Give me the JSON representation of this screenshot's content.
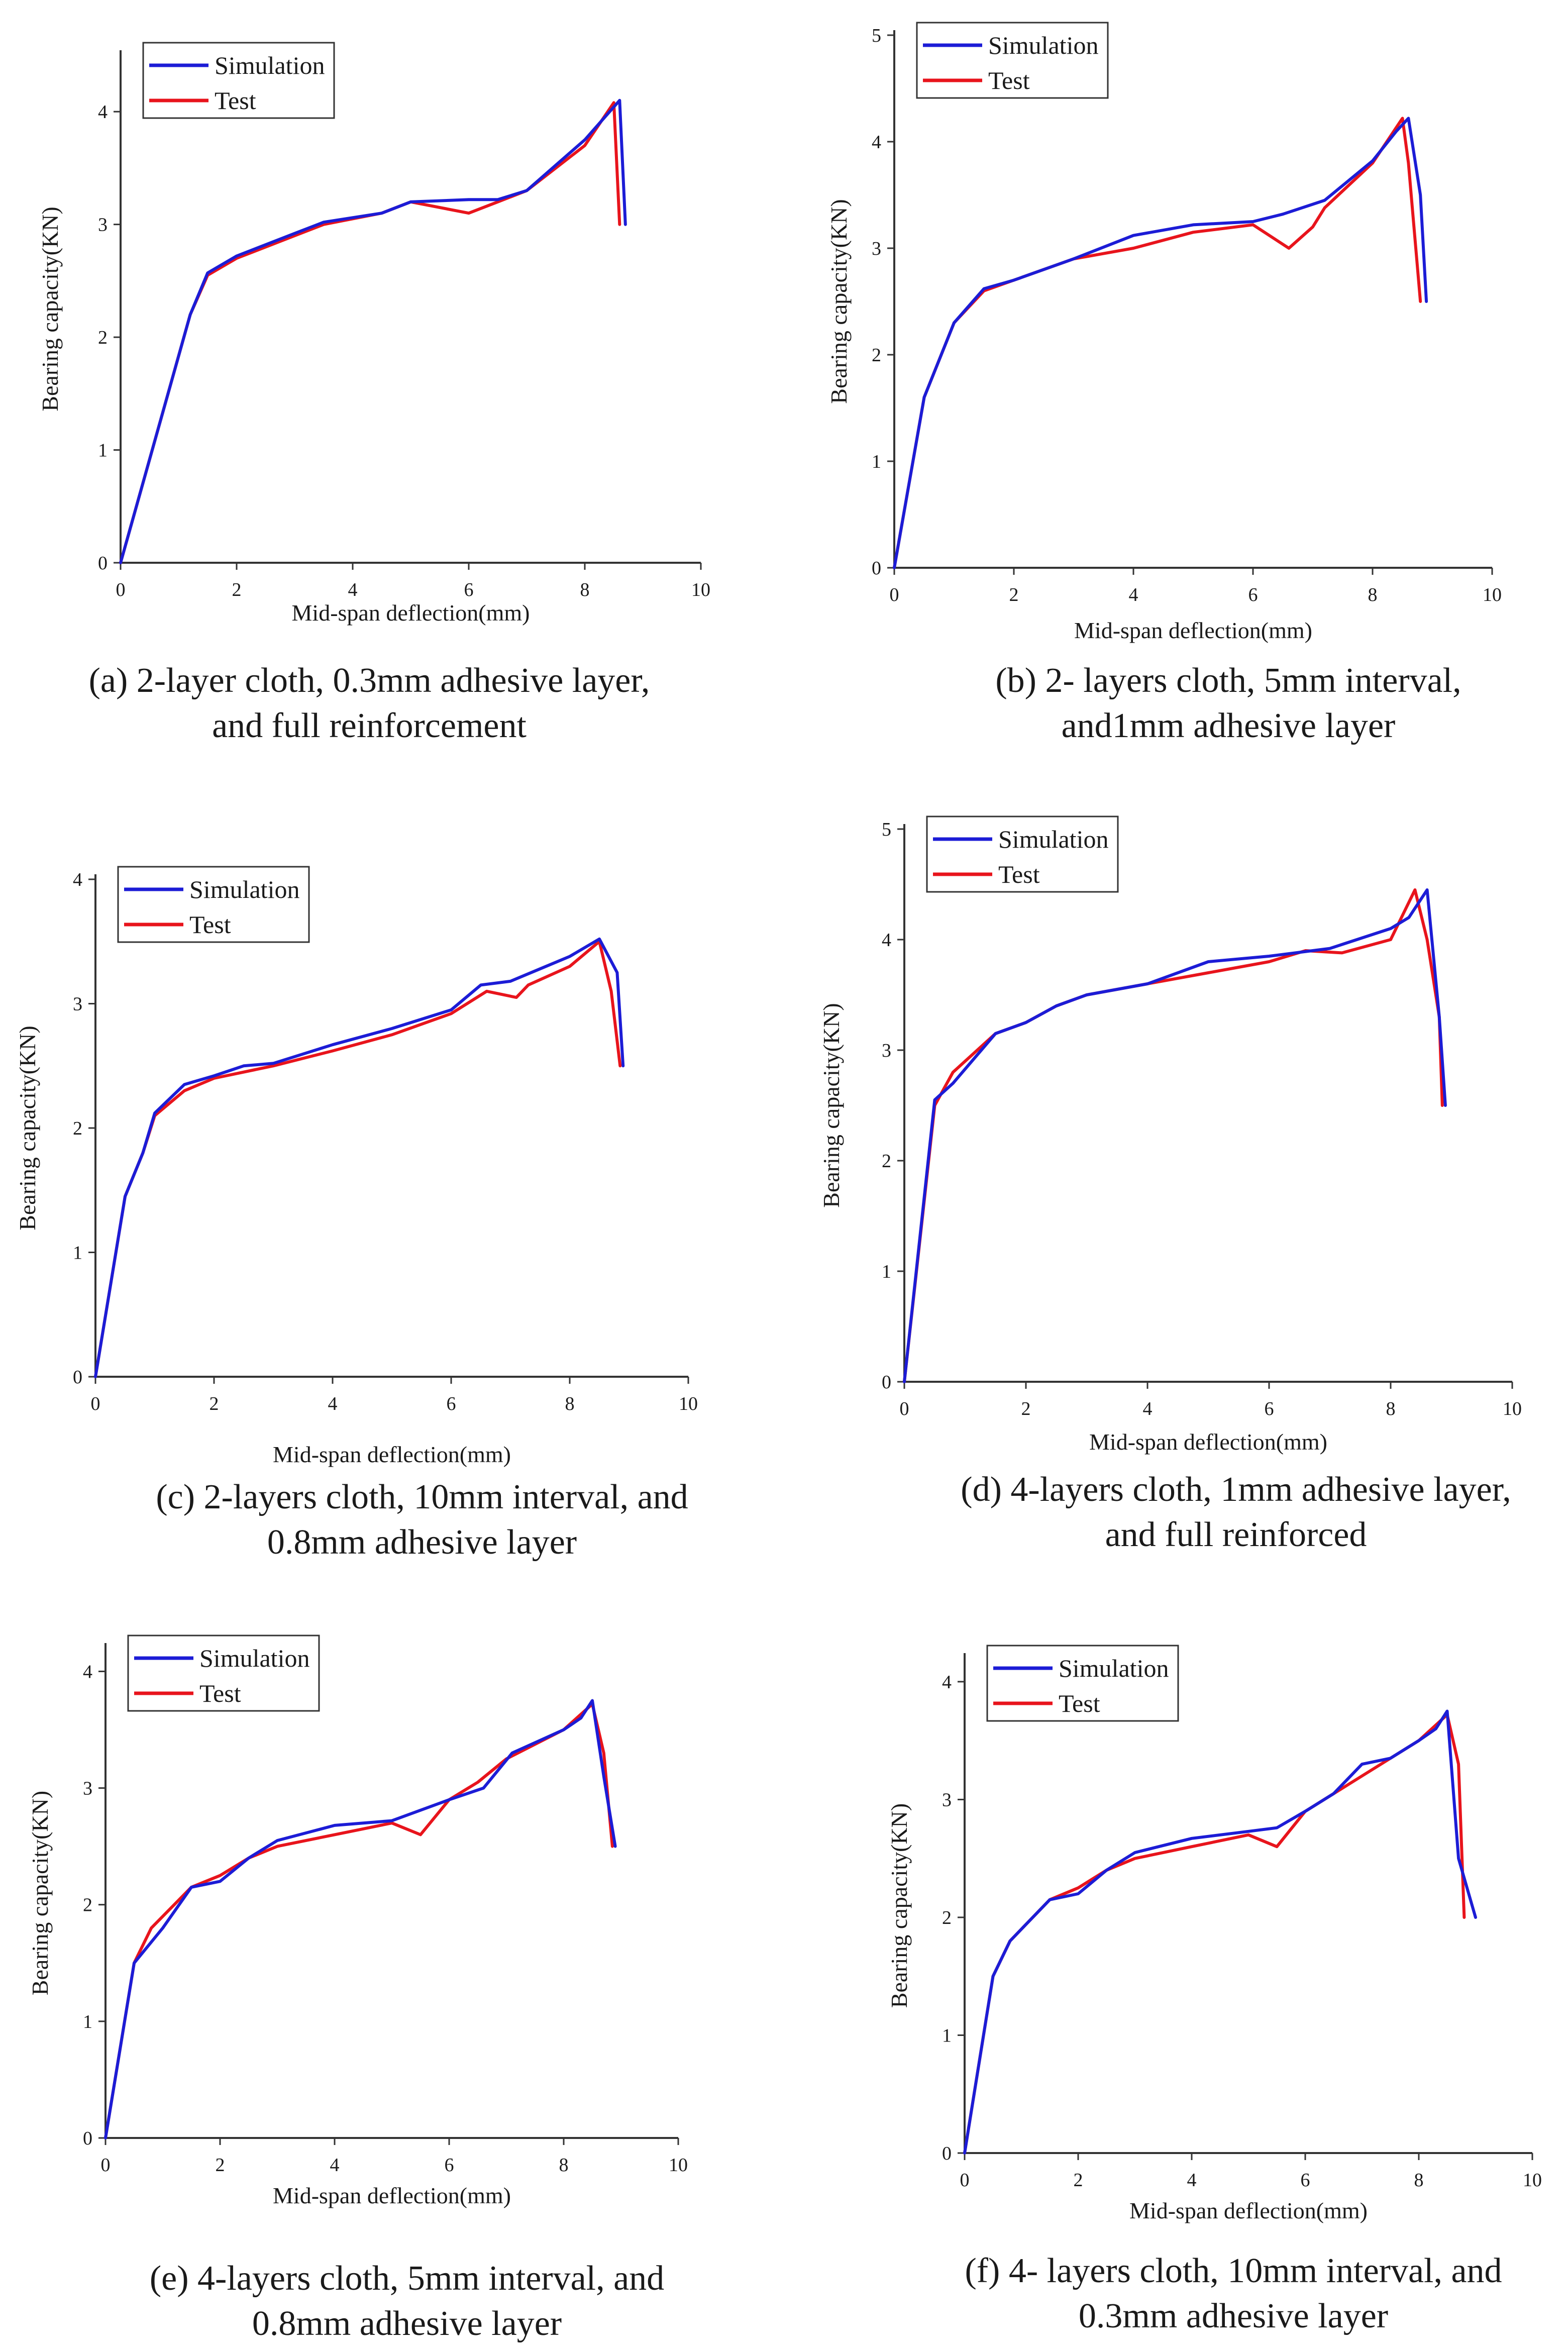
{
  "legend": {
    "simulation": "Simulation",
    "test": "Test"
  },
  "colors": {
    "simulation": "#1c1cd6",
    "test": "#e8141c",
    "axis": "#333333",
    "text": "#1a1a1a"
  },
  "chart_data": [
    {
      "type": "line",
      "panel": "a",
      "caption": [
        "(a) 2-layer cloth, 0.3mm adhesive layer,",
        "and full reinforcement"
      ],
      "xlabel": "Mid-span deflection(mm)",
      "ylabel": "Bearing capacity(KN)",
      "xlim": [
        0,
        10
      ],
      "ylim": [
        0,
        4.5
      ],
      "xticks": [
        0,
        2,
        4,
        6,
        8,
        10
      ],
      "yticks": [
        0,
        1,
        2,
        3,
        4
      ],
      "legend_position": "top-left",
      "series": [
        {
          "name": "Simulation",
          "x": [
            0,
            0.6,
            1.2,
            1.5,
            2,
            3,
            3.5,
            4.5,
            5,
            6,
            6.5,
            7,
            8,
            8.6,
            8.7
          ],
          "y": [
            0,
            1.1,
            2.2,
            2.57,
            2.72,
            2.92,
            3.02,
            3.1,
            3.2,
            3.22,
            3.22,
            3.3,
            3.75,
            4.1,
            3.0
          ]
        },
        {
          "name": "Test",
          "x": [
            0,
            0.6,
            1.2,
            1.5,
            2,
            3,
            3.5,
            4.5,
            5,
            6,
            6.5,
            7,
            8,
            8.5,
            8.6
          ],
          "y": [
            0,
            1.1,
            2.2,
            2.55,
            2.7,
            2.9,
            3.0,
            3.1,
            3.2,
            3.1,
            3.2,
            3.3,
            3.7,
            4.08,
            3.0
          ]
        }
      ]
    },
    {
      "type": "line",
      "panel": "b",
      "caption": [
        "(b) 2- layers cloth, 5mm interval,",
        "and1mm adhesive layer"
      ],
      "xlabel": "Mid-span deflection(mm)",
      "ylabel": "Bearing capacity(KN)",
      "xlim": [
        0,
        10
      ],
      "ylim": [
        0,
        5
      ],
      "xticks": [
        0,
        2,
        4,
        6,
        8,
        10
      ],
      "yticks": [
        0,
        1,
        2,
        3,
        4,
        5
      ],
      "legend_position": "top-left",
      "series": [
        {
          "name": "Simulation",
          "x": [
            0,
            0.5,
            1,
            1.5,
            2,
            3,
            4,
            5,
            6,
            6.5,
            7.2,
            8,
            8.4,
            8.6,
            8.8,
            8.9
          ],
          "y": [
            0,
            1.6,
            2.3,
            2.62,
            2.7,
            2.9,
            3.12,
            3.22,
            3.25,
            3.32,
            3.45,
            3.82,
            4.1,
            4.22,
            3.5,
            2.5
          ]
        },
        {
          "name": "Test",
          "x": [
            0,
            0.5,
            1,
            1.5,
            2,
            3,
            4,
            5,
            6,
            6.6,
            7,
            7.2,
            8,
            8.5,
            8.6,
            8.8
          ],
          "y": [
            0,
            1.6,
            2.3,
            2.6,
            2.7,
            2.9,
            3.0,
            3.15,
            3.22,
            3.0,
            3.2,
            3.38,
            3.8,
            4.22,
            3.8,
            2.5
          ]
        }
      ]
    },
    {
      "type": "line",
      "panel": "c",
      "caption": [
        "(c) 2-layers cloth, 10mm interval, and",
        "0.8mm adhesive layer"
      ],
      "xlabel": "Mid-span deflection(mm)",
      "ylabel": "Bearing capacity(KN)",
      "xlim": [
        0,
        10
      ],
      "ylim": [
        0,
        4
      ],
      "xticks": [
        0,
        2,
        4,
        6,
        8,
        10
      ],
      "yticks": [
        0,
        1,
        2,
        3,
        4
      ],
      "legend_position": "top-left",
      "series": [
        {
          "name": "Simulation",
          "x": [
            0,
            0.5,
            0.8,
            1,
            1.5,
            2,
            2.5,
            3,
            4,
            5,
            6,
            6.5,
            7,
            7.5,
            8,
            8.5,
            8.8,
            8.9
          ],
          "y": [
            0,
            1.45,
            1.8,
            2.12,
            2.35,
            2.42,
            2.5,
            2.52,
            2.67,
            2.8,
            2.95,
            3.15,
            3.18,
            3.28,
            3.38,
            3.52,
            3.25,
            2.5
          ]
        },
        {
          "name": "Test",
          "x": [
            0,
            0.5,
            0.8,
            1,
            1.5,
            2,
            3,
            4,
            5,
            6,
            6.6,
            7.1,
            7.3,
            8,
            8.5,
            8.7,
            8.85
          ],
          "y": [
            0,
            1.45,
            1.8,
            2.1,
            2.3,
            2.4,
            2.5,
            2.62,
            2.75,
            2.92,
            3.1,
            3.05,
            3.15,
            3.3,
            3.5,
            3.1,
            2.5
          ]
        }
      ]
    },
    {
      "type": "line",
      "panel": "d",
      "caption": [
        "(d) 4-layers cloth, 1mm adhesive layer,",
        "and full reinforced"
      ],
      "xlabel": "Mid-span deflection(mm)",
      "ylabel": "Bearing capacity(KN)",
      "xlim": [
        0,
        10
      ],
      "ylim": [
        0,
        5
      ],
      "xticks": [
        0,
        2,
        4,
        6,
        8,
        10
      ],
      "yticks": [
        0,
        1,
        2,
        3,
        4,
        5
      ],
      "legend_position": "top-left",
      "series": [
        {
          "name": "Simulation",
          "x": [
            0,
            0.5,
            0.8,
            1.5,
            2,
            2.5,
            3,
            4,
            5,
            6,
            7,
            8,
            8.3,
            8.6,
            8.8,
            8.9
          ],
          "y": [
            0,
            2.55,
            2.7,
            3.15,
            3.25,
            3.4,
            3.5,
            3.6,
            3.8,
            3.85,
            3.92,
            4.1,
            4.2,
            4.45,
            3.3,
            2.5
          ]
        },
        {
          "name": "Test",
          "x": [
            0,
            0.5,
            0.8,
            1.5,
            2,
            2.5,
            3,
            4,
            5,
            6,
            6.6,
            7.2,
            8,
            8.4,
            8.6,
            8.8,
            8.85
          ],
          "y": [
            0,
            2.5,
            2.8,
            3.15,
            3.25,
            3.4,
            3.5,
            3.6,
            3.7,
            3.8,
            3.9,
            3.88,
            4.0,
            4.45,
            4.0,
            3.3,
            2.5
          ]
        }
      ]
    },
    {
      "type": "line",
      "panel": "e",
      "caption": [
        "(e) 4-layers cloth, 5mm interval, and",
        "0.8mm adhesive layer"
      ],
      "xlabel": "Mid-span deflection(mm)",
      "ylabel": "Bearing capacity(KN)",
      "xlim": [
        0,
        10
      ],
      "ylim": [
        0,
        4.2
      ],
      "xticks": [
        0,
        2,
        4,
        6,
        8,
        10
      ],
      "yticks": [
        0,
        1,
        2,
        3,
        4
      ],
      "legend_position": "top-left",
      "series": [
        {
          "name": "Simulation",
          "x": [
            0,
            0.5,
            1,
            1.5,
            2,
            2.5,
            3,
            4,
            5,
            6,
            6.6,
            7.1,
            8,
            8.3,
            8.5,
            8.7,
            8.9
          ],
          "y": [
            0,
            1.5,
            1.8,
            2.15,
            2.2,
            2.4,
            2.55,
            2.68,
            2.72,
            2.9,
            3.0,
            3.3,
            3.5,
            3.6,
            3.75,
            3.1,
            2.5
          ]
        },
        {
          "name": "Test",
          "x": [
            0,
            0.5,
            0.8,
            1.5,
            2,
            2.5,
            3,
            4,
            5,
            5.5,
            6,
            6.5,
            7,
            8,
            8.5,
            8.7,
            8.85
          ],
          "y": [
            0,
            1.5,
            1.8,
            2.15,
            2.25,
            2.4,
            2.5,
            2.6,
            2.7,
            2.6,
            2.9,
            3.05,
            3.25,
            3.5,
            3.72,
            3.3,
            2.5
          ]
        }
      ]
    },
    {
      "type": "line",
      "panel": "f",
      "caption": [
        "(f) 4- layers cloth, 10mm interval, and",
        "0.3mm adhesive layer"
      ],
      "xlabel": "Mid-span deflection(mm)",
      "ylabel": "Bearing capacity(KN)",
      "xlim": [
        0,
        10
      ],
      "ylim": [
        0,
        4.2
      ],
      "xticks": [
        0,
        2,
        4,
        6,
        8,
        10
      ],
      "yticks": [
        0,
        1,
        2,
        3,
        4
      ],
      "legend_position": "top-left",
      "series": [
        {
          "name": "Simulation",
          "x": [
            0,
            0.5,
            0.8,
            1.5,
            2,
            2.5,
            3,
            4,
            5,
            5.5,
            6,
            6.5,
            7,
            7.5,
            8,
            8.3,
            8.5,
            8.7,
            9.0
          ],
          "y": [
            0,
            1.5,
            1.8,
            2.15,
            2.2,
            2.4,
            2.55,
            2.67,
            2.73,
            2.76,
            2.9,
            3.05,
            3.3,
            3.35,
            3.5,
            3.6,
            3.75,
            2.5,
            2.0
          ]
        },
        {
          "name": "Test",
          "x": [
            0,
            0.5,
            0.8,
            1.5,
            2,
            2.5,
            3,
            4,
            5,
            5.5,
            6,
            6.5,
            7,
            8,
            8.5,
            8.7,
            8.8
          ],
          "y": [
            0,
            1.5,
            1.8,
            2.15,
            2.25,
            2.4,
            2.5,
            2.6,
            2.7,
            2.6,
            2.9,
            3.05,
            3.2,
            3.5,
            3.72,
            3.3,
            2.0
          ]
        }
      ]
    }
  ]
}
